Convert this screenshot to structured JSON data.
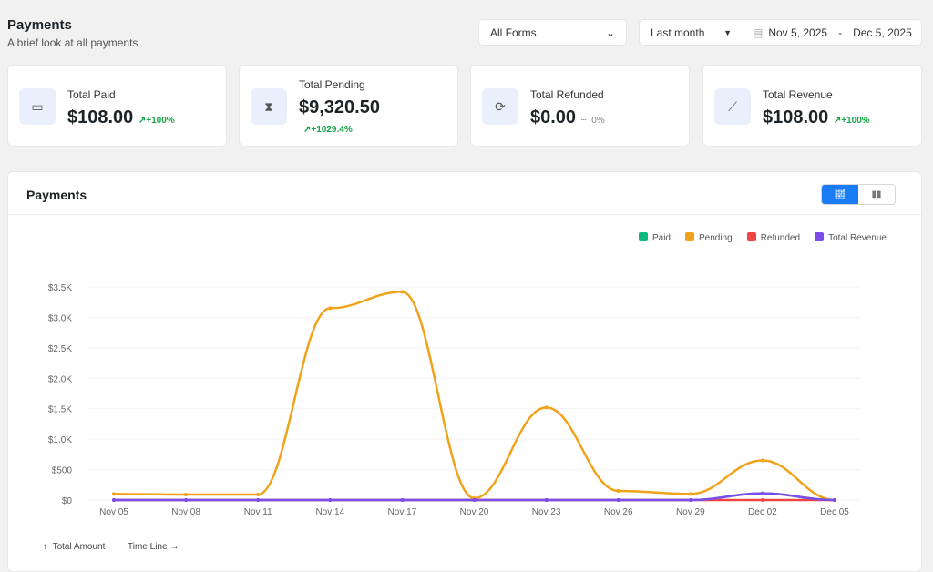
{
  "header": {
    "title": "Payments",
    "subtitle": "A brief look at all payments"
  },
  "filters": {
    "forms": "All Forms",
    "period": "Last month",
    "start": "Nov 5, 2025",
    "sep": "-",
    "end": "Dec 5, 2025"
  },
  "cards": [
    {
      "label": "Total Paid",
      "value": "$108.00",
      "change": "+100%",
      "icon": "wallet-icon"
    },
    {
      "label": "Total Pending",
      "value": "$9,320.50",
      "change": "+1029.4%",
      "icon": "hourglass-icon"
    },
    {
      "label": "Total Refunded",
      "value": "$0.00",
      "change": "0%",
      "icon": "refund-icon"
    },
    {
      "label": "Total Revenue",
      "value": "$108.00",
      "change": "+100%",
      "icon": "chart-line-icon"
    }
  ],
  "panel": {
    "title": "Payments",
    "y_axis_label": "Total Amount",
    "x_axis_label": "Time Line"
  },
  "chart_data": {
    "type": "line",
    "title": "Payments",
    "xlabel": "Time Line",
    "ylabel": "Total Amount",
    "ylim": [
      0,
      3500
    ],
    "categories": [
      "Nov 05",
      "Nov 08",
      "Nov 11",
      "Nov 14",
      "Nov 17",
      "Nov 20",
      "Nov 23",
      "Nov 26",
      "Nov 29",
      "Dec 02",
      "Dec 05"
    ],
    "yticks": [
      "$0",
      "$500",
      "$1.0K",
      "$1.5K",
      "$2.0K",
      "$2.5K",
      "$3.0K",
      "$3.5K"
    ],
    "legend": "top-right",
    "series": [
      {
        "name": "Paid",
        "color": "#10b981",
        "values": [
          0,
          0,
          0,
          0,
          0,
          0,
          0,
          0,
          0,
          108,
          0
        ]
      },
      {
        "name": "Pending",
        "color": "#f0a31a",
        "values": [
          100,
          90,
          90,
          3150,
          3420,
          30,
          1520,
          150,
          100,
          650,
          0
        ]
      },
      {
        "name": "Refunded",
        "color": "#ef4444",
        "values": [
          0,
          0,
          0,
          0,
          0,
          0,
          0,
          0,
          0,
          0,
          0
        ]
      },
      {
        "name": "Total Revenue",
        "color": "#7c4dea",
        "values": [
          0,
          0,
          0,
          0,
          0,
          0,
          0,
          0,
          0,
          108,
          0
        ]
      }
    ]
  }
}
